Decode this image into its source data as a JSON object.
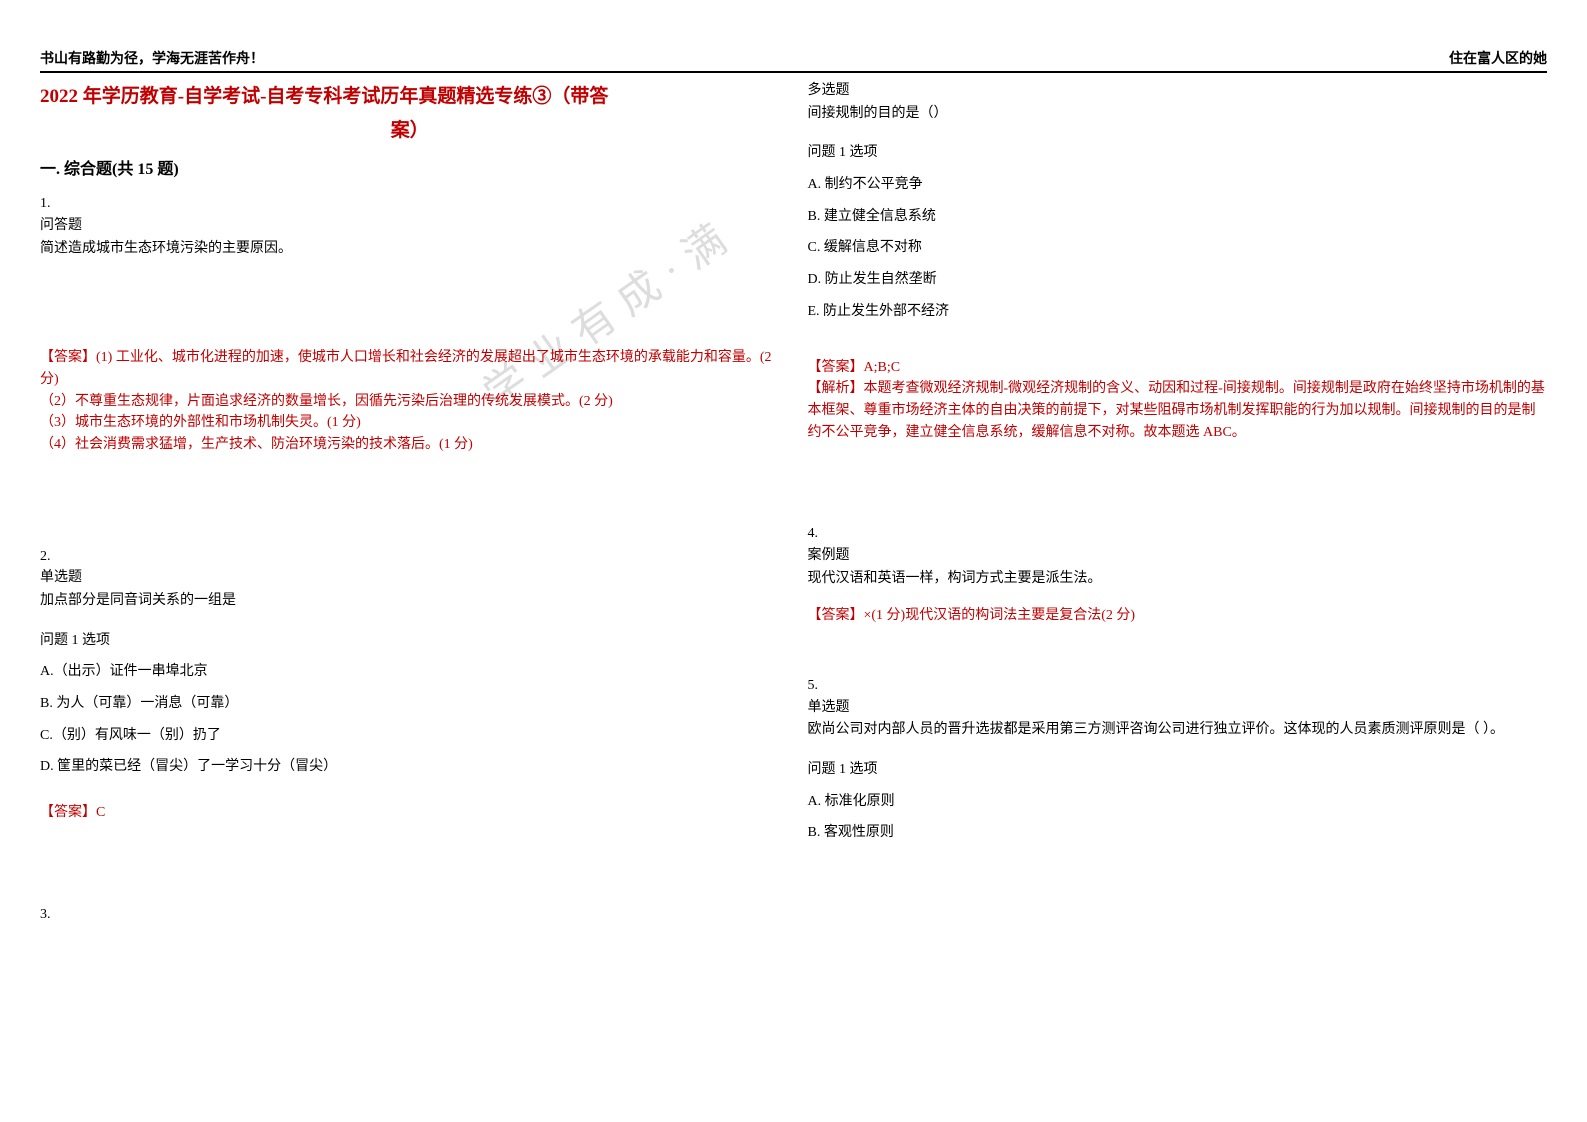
{
  "header": {
    "left": "书山有路勤为径，学海无涯苦作舟！",
    "right": "住在富人区的她"
  },
  "title": {
    "line1": "2022 年学历教育-自学考试-自考专科考试历年真题精选专练③（带答",
    "line2": "案）"
  },
  "section_heading": "一. 综合题(共 15 题)",
  "watermark_text": "学业有成·满",
  "col1": {
    "q1": {
      "num": "1.",
      "type": "问答题",
      "text": "简述造成城市生态环境污染的主要原因。",
      "answer_lines": [
        "【答案】(1) 工业化、城市化进程的加速，使城市人口增长和社会经济的发展超出了城市生态环境的承载能力和容量。(2 分)",
        "（2）不尊重生态规律，片面追求经济的数量增长，因循先污染后治理的传统发展模式。(2 分)",
        "（3）城市生态环境的外部性和市场机制失灵。(1 分)",
        "（4）社会消费需求猛增，生产技术、防治环境污染的技术落后。(1 分)"
      ]
    },
    "q2": {
      "num": "2.",
      "type": "单选题",
      "text": "加点部分是同音词关系的一组是",
      "prompt": "问题 1 选项",
      "options": [
        "A.（出示）证件一串埠北京",
        "B. 为人（可靠）一消息（可靠）",
        "C.（别）有风味一（别）扔了",
        "D. 筐里的菜已经（冒尖）了一学习十分（冒尖）"
      ],
      "answer": "【答案】C"
    },
    "q3": {
      "num": "3."
    }
  },
  "col2": {
    "q3_continued": {
      "type": "多选题",
      "text": "间接规制的目的是（）",
      "prompt": "问题 1 选项",
      "options": [
        "A. 制约不公平竞争",
        "B. 建立健全信息系统",
        "C. 缓解信息不对称",
        "D. 防止发生自然垄断",
        "E. 防止发生外部不经济"
      ],
      "answer": "【答案】A;B;C",
      "analysis": "【解析】本题考查微观经济规制-微观经济规制的含义、动因和过程-间接规制。间接规制是政府在始终坚持市场机制的基本框架、尊重市场经济主体的自由决策的前提下，对某些阻碍市场机制发挥职能的行为加以规制。间接规制的目的是制约不公平竞争，建立健全信息系统，缓解信息不对称。故本题选 ABC。"
    },
    "q4": {
      "num": "4.",
      "type": "案例题",
      "text": "现代汉语和英语一样，构词方式主要是派生法。",
      "answer": "【答案】×(1 分)现代汉语的构词法主要是复合法(2 分)"
    },
    "q5": {
      "num": "5.",
      "type": "单选题",
      "text": "欧尚公司对内部人员的晋升选拔都是采用第三方测评咨询公司进行独立评价。这体现的人员素质测评原则是（ ）。",
      "prompt": "问题 1 选项",
      "options": [
        "A. 标准化原则",
        "B. 客观性原则"
      ]
    }
  },
  "colors": {
    "accent": "#c00000",
    "text": "#000000",
    "watermark": "#dddddd",
    "background": "#ffffff"
  }
}
